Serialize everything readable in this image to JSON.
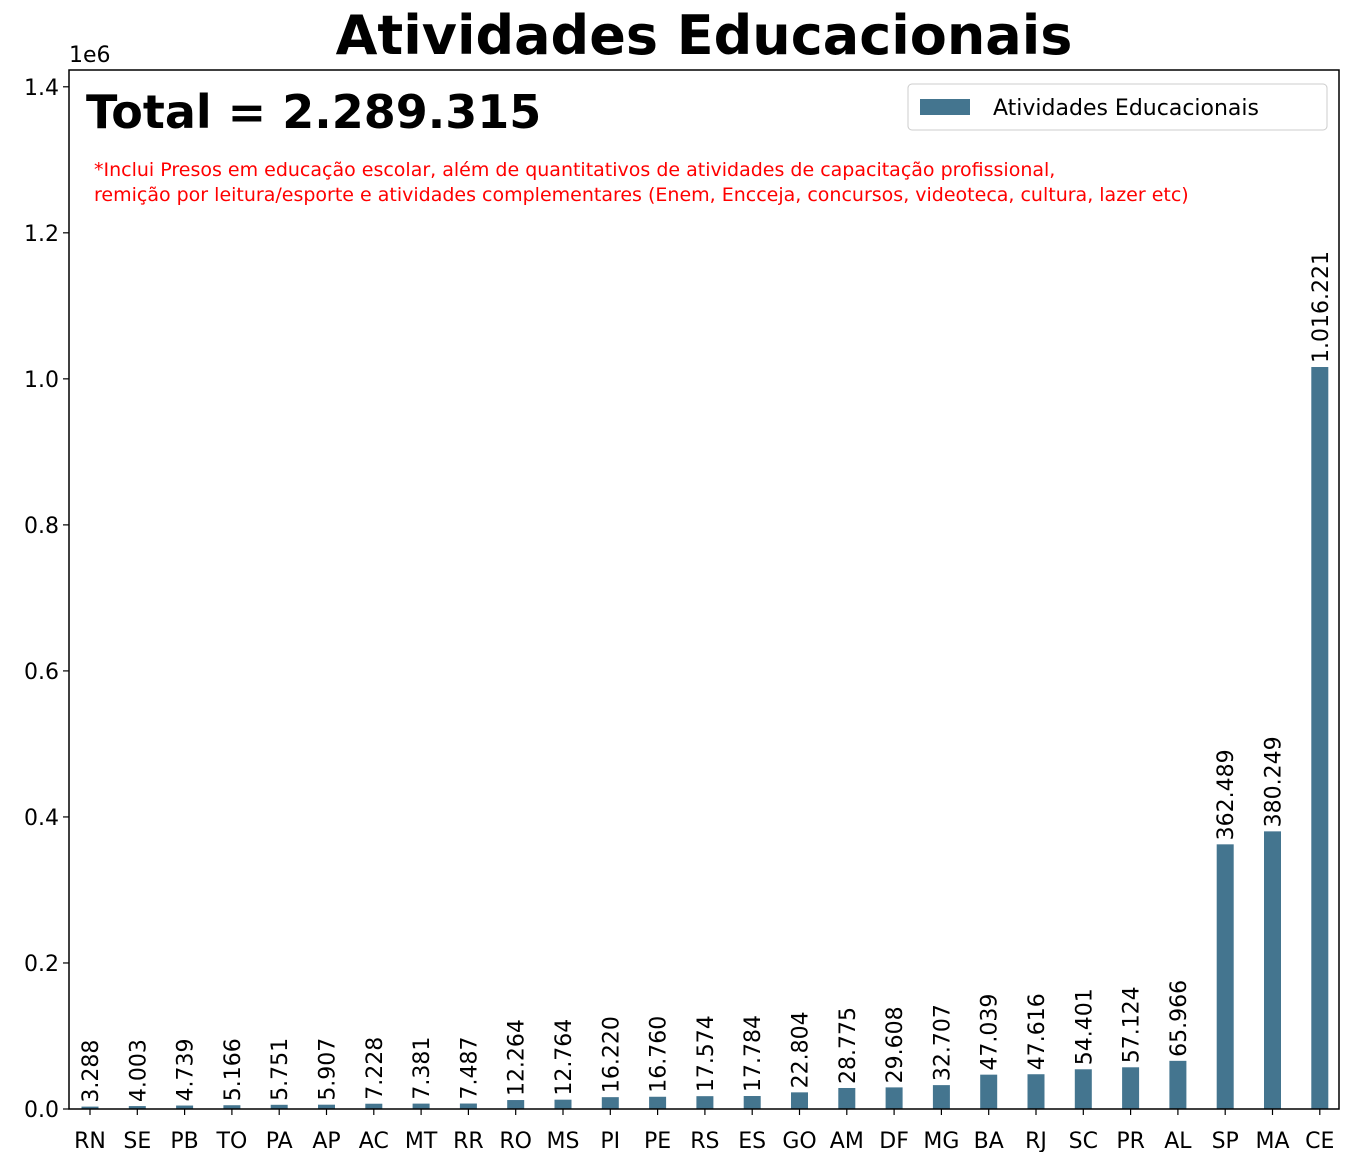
{
  "chart_data": {
    "type": "bar",
    "title": "Atividades Educacionais",
    "y_offset_label": "1e6",
    "annotation": "Total = 2.289.315",
    "footnote": [
      "*Inclui Presos em educação escolar, além de quantitativos de atividades de capacitação profissional,",
      "remição por leitura/esporte e atividades complementares (Enem, Encceja, concursos, videoteca, cultura, lazer etc)"
    ],
    "categories": [
      "RN",
      "SE",
      "PB",
      "TO",
      "PA",
      "AP",
      "AC",
      "MT",
      "RR",
      "RO",
      "MS",
      "PI",
      "PE",
      "RS",
      "ES",
      "GO",
      "AM",
      "DF",
      "MG",
      "BA",
      "RJ",
      "SC",
      "PR",
      "AL",
      "SP",
      "MA",
      "CE"
    ],
    "series": [
      {
        "name": "Atividades Educacionais",
        "color": "#44758f",
        "values": [
          3288,
          4003,
          4739,
          5166,
          5751,
          5907,
          7228,
          7381,
          7487,
          12264,
          12764,
          16220,
          16760,
          17574,
          17784,
          22804,
          28775,
          29608,
          32707,
          47039,
          47616,
          54401,
          57124,
          65966,
          362489,
          380249,
          1016221
        ],
        "value_labels": [
          "3.288",
          "4.003",
          "4.739",
          "5.166",
          "5.751",
          "5.907",
          "7.228",
          "7.381",
          "7.487",
          "12.264",
          "12.764",
          "16.220",
          "16.760",
          "17.574",
          "17.784",
          "22.804",
          "28.775",
          "29.608",
          "32.707",
          "47.039",
          "47.616",
          "54.401",
          "57.124",
          "65.966",
          "362.489",
          "380.249",
          "1.016.221"
        ]
      }
    ],
    "ylim": [
      0,
      1423000
    ],
    "yticks": [
      {
        "value": 0,
        "label": "0.0"
      },
      {
        "value": 200000,
        "label": "0.2"
      },
      {
        "value": 400000,
        "label": "0.4"
      },
      {
        "value": 600000,
        "label": "0.6"
      },
      {
        "value": 800000,
        "label": "0.8"
      },
      {
        "value": 1000000,
        "label": "1.0"
      },
      {
        "value": 1200000,
        "label": "1.2"
      },
      {
        "value": 1400000,
        "label": "1.4"
      }
    ],
    "legend": "upper right"
  }
}
